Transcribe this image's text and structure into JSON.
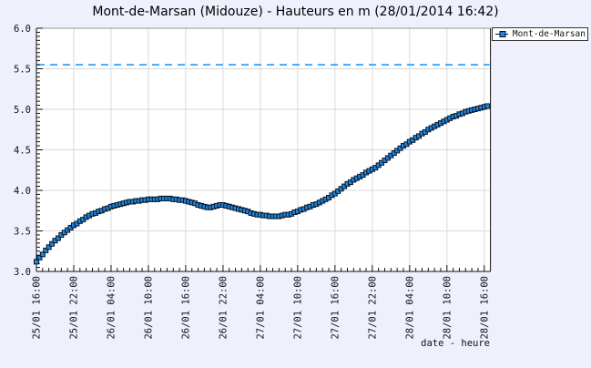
{
  "title": "Mont-de-Marsan (Midouze) - Hauteurs en m (28/01/2014 16:42)",
  "legend": {
    "series_label": "Mont-de-Marsan"
  },
  "axes": {
    "xlabel": "date - heure"
  },
  "colors": {
    "page_background": "#EEF1FB",
    "plot_background": "#FFFFFF",
    "gridline": "#D9D9D9",
    "frame": "#111111",
    "frame_top": "#999999",
    "marker_fill": "#1E86E0",
    "marker_stroke": "#0A1220",
    "threshold_line": "#1E9AFF"
  },
  "chart_data": {
    "type": "line",
    "title": "Mont-de-Marsan (Midouze) - Hauteurs en m (28/01/2014 16:42)",
    "xlabel": "date - heure",
    "ylabel": "Hauteurs en m",
    "ylim": [
      3.0,
      6.0
    ],
    "y_major_tick_step": 0.5,
    "y_minor_tick_step": 0.05,
    "y_tick_labels": [
      "3.0",
      "3.5",
      "4.0",
      "4.5",
      "5.0",
      "5.5",
      "6.0"
    ],
    "x_axis_hours": 73,
    "x_major_tick_step_hours": 6,
    "x_minor_tick_step_hours": 1,
    "x_tick_labels": [
      "25/01 16:00",
      "25/01 22:00",
      "26/01 04:00",
      "26/01 10:00",
      "26/01 16:00",
      "26/01 22:00",
      "27/01 04:00",
      "27/01 10:00",
      "27/01 16:00",
      "27/01 22:00",
      "28/01 04:00",
      "28/01 10:00",
      "28/01 16:00"
    ],
    "grid": true,
    "legend_position": "top-right",
    "threshold_line": {
      "value": 5.55,
      "style": "dashed",
      "color": "#1E9AFF"
    },
    "marker": {
      "shape": "square",
      "size": 5,
      "fill": "#1E86E0",
      "stroke": "#0A1220"
    },
    "series": [
      {
        "name": "Mont-de-Marsan",
        "start": "25/01 16:00",
        "interval_hours": 0.5,
        "values": [
          3.12,
          3.17,
          3.21,
          3.26,
          3.3,
          3.34,
          3.38,
          3.41,
          3.45,
          3.48,
          3.51,
          3.54,
          3.57,
          3.59,
          3.62,
          3.64,
          3.67,
          3.69,
          3.71,
          3.72,
          3.74,
          3.75,
          3.77,
          3.78,
          3.8,
          3.81,
          3.82,
          3.83,
          3.84,
          3.85,
          3.86,
          3.86,
          3.87,
          3.87,
          3.88,
          3.88,
          3.89,
          3.89,
          3.89,
          3.89,
          3.9,
          3.9,
          3.9,
          3.9,
          3.89,
          3.89,
          3.88,
          3.88,
          3.87,
          3.86,
          3.85,
          3.84,
          3.82,
          3.81,
          3.8,
          3.79,
          3.79,
          3.8,
          3.81,
          3.82,
          3.82,
          3.81,
          3.8,
          3.79,
          3.78,
          3.77,
          3.76,
          3.75,
          3.74,
          3.72,
          3.71,
          3.7,
          3.7,
          3.69,
          3.69,
          3.68,
          3.68,
          3.68,
          3.68,
          3.69,
          3.7,
          3.7,
          3.71,
          3.73,
          3.74,
          3.76,
          3.77,
          3.79,
          3.8,
          3.82,
          3.83,
          3.85,
          3.87,
          3.89,
          3.91,
          3.94,
          3.96,
          3.99,
          4.02,
          4.05,
          4.08,
          4.1,
          4.13,
          4.15,
          4.17,
          4.19,
          4.22,
          4.24,
          4.26,
          4.28,
          4.31,
          4.34,
          4.37,
          4.4,
          4.43,
          4.46,
          4.49,
          4.52,
          4.55,
          4.57,
          4.6,
          4.62,
          4.65,
          4.67,
          4.7,
          4.72,
          4.75,
          4.77,
          4.79,
          4.81,
          4.83,
          4.85,
          4.87,
          4.89,
          4.91,
          4.92,
          4.94,
          4.95,
          4.97,
          4.98,
          4.99,
          5.0,
          5.01,
          5.02,
          5.03,
          5.04
        ]
      }
    ]
  }
}
